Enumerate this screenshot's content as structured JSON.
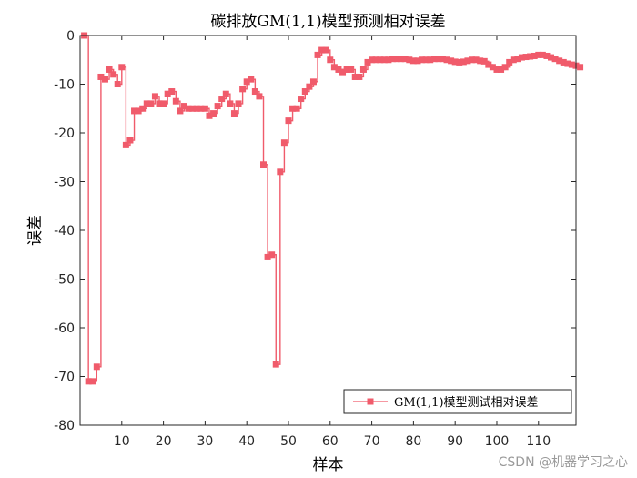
{
  "chart_data": {
    "type": "line",
    "title": "碳排放GM(1,1)模型预测相对误差",
    "xlabel": "样本",
    "ylabel": "误差",
    "xlim": [
      0,
      119
    ],
    "ylim": [
      -80,
      0
    ],
    "xticks": [
      10,
      20,
      30,
      40,
      50,
      60,
      70,
      80,
      90,
      100,
      110
    ],
    "yticks": [
      0,
      -10,
      -20,
      -30,
      -40,
      -50,
      -60,
      -70,
      -80
    ],
    "grid": false,
    "legend_position": "bottom-right",
    "series": [
      {
        "name": "GM(1,1)模型测试相对误差",
        "color": "#f05b6b",
        "marker": "square",
        "step": true,
        "values": [
          0,
          -71,
          -71,
          -68,
          -8.5,
          -9,
          -7,
          -8,
          -10,
          -6.5,
          -22.5,
          -21.5,
          -15.5,
          -15.5,
          -15,
          -14,
          -14,
          -12.5,
          -14,
          -14,
          -12,
          -11.5,
          -13.5,
          -15.5,
          -14.5,
          -15,
          -15,
          -15,
          -15,
          -15,
          -16.5,
          -16,
          -14.5,
          -13,
          -12,
          -14,
          -16,
          -14,
          -11,
          -9.5,
          -9,
          -11.5,
          -12.5,
          -26.5,
          -45.5,
          -45,
          -67.5,
          -28,
          -22,
          -17.5,
          -15,
          -15,
          -13,
          -11.5,
          -10.5,
          -9.5,
          -4,
          -3,
          -3,
          -5,
          -6.5,
          -7,
          -7.5,
          -7,
          -7,
          -8.5,
          -8.5,
          -7,
          -5.5,
          -5,
          -5,
          -5,
          -5,
          -5,
          -4.8,
          -4.8,
          -4.8,
          -4.8,
          -5,
          -5.2,
          -5.2,
          -5,
          -5,
          -5,
          -4.8,
          -4.8,
          -4.8,
          -5,
          -5.2,
          -5.4,
          -5.5,
          -5.4,
          -5.2,
          -5,
          -5,
          -5.2,
          -5.3,
          -6,
          -6.5,
          -7,
          -7,
          -6.5,
          -5.5,
          -5,
          -4.8,
          -4.5,
          -4.4,
          -4.3,
          -4.2,
          -4,
          -4,
          -4.2,
          -4.5,
          -4.8,
          -5.2,
          -5.5,
          -5.8,
          -6,
          -6.2,
          -6.5
        ]
      }
    ]
  },
  "watermark": "CSDN @机器学习之心"
}
